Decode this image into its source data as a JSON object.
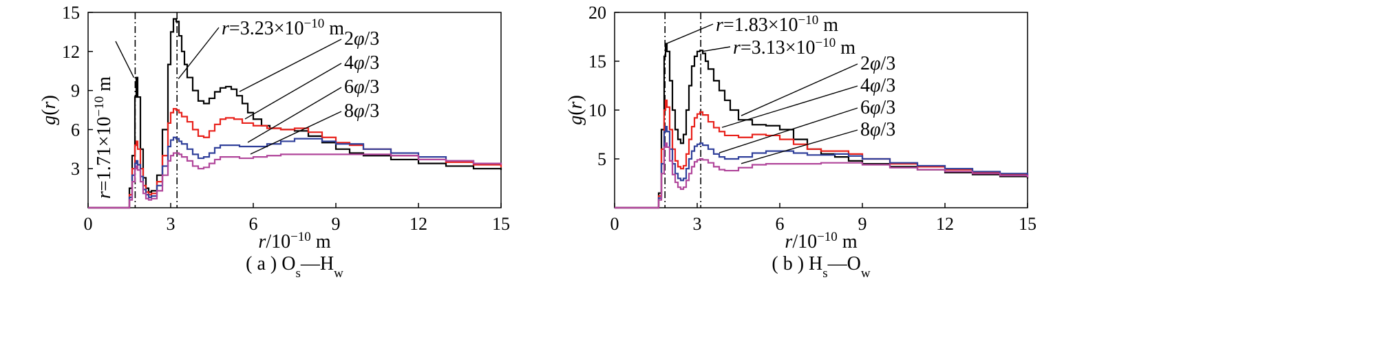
{
  "chart_data": [
    {
      "type": "line",
      "caption": "( a ) O",
      "caption_sub1": "s",
      "caption_dash": "—H",
      "caption_sub2": "w",
      "xlabel": "r/10",
      "xlabel_exp": "−10",
      "xlabel_unit": " m",
      "ylabel": "g(r)",
      "xlim": [
        0,
        15
      ],
      "ylim": [
        0,
        15
      ],
      "xticks": [
        "0",
        "3",
        "6",
        "9",
        "12",
        "15"
      ],
      "yticks": [
        "3",
        "6",
        "9",
        "12",
        "15"
      ],
      "vlines": [
        1.71,
        3.23
      ],
      "annotations": [
        {
          "text": "r=1.71×10",
          "exp": "−10",
          "unit": " m",
          "x": 1.71,
          "y": 10.0
        },
        {
          "text": "r=3.23×10",
          "exp": "−10",
          "unit": " m",
          "x": 3.23,
          "y": 9.9
        }
      ],
      "series": [
        {
          "name": "2φ/3",
          "color": "#000000",
          "label_at": 5.5,
          "x": [
            0,
            1.4,
            1.5,
            1.6,
            1.7,
            1.75,
            1.8,
            1.9,
            2.0,
            2.1,
            2.2,
            2.3,
            2.5,
            2.7,
            2.9,
            3.0,
            3.1,
            3.2,
            3.3,
            3.4,
            3.5,
            3.6,
            3.8,
            4.0,
            4.2,
            4.4,
            4.6,
            4.8,
            5.0,
            5.2,
            5.4,
            5.6,
            5.8,
            6.0,
            6.3,
            6.6,
            7.0,
            7.5,
            8.0,
            8.5,
            9.0,
            9.5,
            10.0,
            11.0,
            12.0,
            13.0,
            14.0,
            15.0
          ],
          "y": [
            0,
            0,
            1.5,
            4.0,
            8.5,
            10.0,
            8.5,
            4.5,
            2.3,
            1.5,
            1.2,
            1.3,
            2.5,
            6.0,
            11.0,
            13.5,
            14.5,
            14.3,
            13.2,
            12.0,
            11.0,
            10.0,
            9.0,
            8.2,
            8.0,
            8.4,
            8.9,
            9.2,
            9.3,
            9.1,
            8.6,
            8.0,
            7.3,
            6.8,
            6.3,
            6.1,
            6.0,
            5.9,
            5.5,
            5.0,
            4.5,
            4.2,
            4.0,
            3.7,
            3.4,
            3.2,
            3.0,
            2.9
          ]
        },
        {
          "name": "4φ/3",
          "color": "#e8201a",
          "label_at": 5.7,
          "x": [
            0,
            1.4,
            1.5,
            1.6,
            1.7,
            1.75,
            1.8,
            1.9,
            2.0,
            2.1,
            2.2,
            2.3,
            2.5,
            2.7,
            2.9,
            3.0,
            3.1,
            3.2,
            3.3,
            3.4,
            3.6,
            3.8,
            4.0,
            4.2,
            4.4,
            4.6,
            4.8,
            5.0,
            5.3,
            5.6,
            6.0,
            6.5,
            7.0,
            7.5,
            8.0,
            8.5,
            9.0,
            9.5,
            10.0,
            11.0,
            12.0,
            13.0,
            14.0,
            15.0
          ],
          "y": [
            0,
            0,
            1.0,
            3.0,
            4.8,
            5.1,
            4.5,
            3.0,
            1.7,
            1.2,
            1.0,
            1.1,
            2.0,
            4.0,
            6.5,
            7.3,
            7.6,
            7.5,
            7.3,
            7.0,
            6.6,
            6.0,
            5.5,
            5.4,
            5.9,
            6.4,
            6.8,
            6.9,
            6.8,
            6.5,
            6.3,
            6.1,
            6.0,
            6.1,
            5.8,
            5.4,
            5.0,
            4.8,
            4.5,
            4.0,
            3.7,
            3.5,
            3.3,
            3.1
          ]
        },
        {
          "name": "6φ/3",
          "color": "#2f3f9a",
          "label_at": 5.8,
          "x": [
            0,
            1.4,
            1.5,
            1.6,
            1.7,
            1.75,
            1.8,
            1.9,
            2.0,
            2.1,
            2.2,
            2.3,
            2.5,
            2.7,
            2.9,
            3.0,
            3.1,
            3.2,
            3.3,
            3.4,
            3.6,
            3.8,
            4.0,
            4.2,
            4.4,
            4.6,
            4.8,
            5.0,
            5.5,
            6.0,
            6.5,
            7.0,
            7.5,
            8.0,
            8.5,
            9.0,
            10.0,
            11.0,
            12.0,
            13.0,
            14.0,
            15.0
          ],
          "y": [
            0,
            0,
            0.8,
            2.5,
            3.4,
            3.6,
            3.3,
            2.4,
            1.4,
            1.0,
            0.8,
            0.9,
            1.7,
            3.2,
            4.7,
            5.2,
            5.4,
            5.3,
            5.1,
            4.9,
            4.5,
            4.1,
            3.8,
            3.9,
            4.2,
            4.6,
            4.8,
            4.8,
            4.7,
            4.7,
            4.9,
            5.1,
            5.3,
            5.3,
            5.1,
            4.9,
            4.5,
            4.2,
            3.9,
            3.6,
            3.4,
            3.3
          ]
        },
        {
          "name": "8φ/3",
          "color": "#b0459a",
          "label_at": 5.9,
          "x": [
            0,
            1.4,
            1.5,
            1.6,
            1.7,
            1.75,
            1.8,
            1.9,
            2.0,
            2.1,
            2.2,
            2.3,
            2.5,
            2.7,
            2.9,
            3.0,
            3.1,
            3.2,
            3.3,
            3.4,
            3.6,
            3.8,
            4.0,
            4.2,
            4.4,
            4.6,
            4.8,
            5.0,
            5.5,
            6.0,
            6.5,
            7.0,
            7.5,
            8.0,
            9.0,
            10.0,
            11.0,
            12.0,
            13.0,
            14.0,
            15.0
          ],
          "y": [
            0,
            0,
            0.6,
            2.0,
            3.0,
            3.2,
            2.9,
            2.0,
            1.1,
            0.7,
            0.6,
            0.7,
            1.3,
            2.5,
            3.6,
            4.0,
            4.2,
            4.2,
            4.1,
            3.9,
            3.6,
            3.2,
            3.0,
            3.1,
            3.4,
            3.7,
            3.9,
            3.9,
            3.8,
            3.9,
            4.0,
            4.1,
            4.1,
            4.1,
            4.1,
            4.1,
            4.0,
            3.7,
            3.6,
            3.4,
            3.3
          ]
        }
      ]
    },
    {
      "type": "line",
      "caption": "( b ) H",
      "caption_sub1": "s",
      "caption_dash": "—O",
      "caption_sub2": "w",
      "xlabel": "r/10",
      "xlabel_exp": "−10",
      "xlabel_unit": " m",
      "ylabel": "g(r)",
      "xlim": [
        0,
        15
      ],
      "ylim": [
        0,
        20
      ],
      "xticks": [
        "0",
        "3",
        "6",
        "9",
        "12",
        "15"
      ],
      "yticks": [
        "5",
        "10",
        "15",
        "20"
      ],
      "vlines": [
        1.83,
        3.13
      ],
      "annotations": [
        {
          "text": "r=1.83×10",
          "exp": "−10",
          "unit": " m",
          "x": 1.83,
          "y": 16.8
        },
        {
          "text": "r=3.13×10",
          "exp": "−10",
          "unit": " m",
          "x": 3.13,
          "y": 16.0
        }
      ],
      "series": [
        {
          "name": "2φ/3",
          "color": "#000000",
          "label_at": 4.6,
          "x": [
            0,
            1.5,
            1.6,
            1.7,
            1.8,
            1.85,
            1.9,
            2.0,
            2.1,
            2.2,
            2.3,
            2.4,
            2.5,
            2.6,
            2.7,
            2.8,
            2.9,
            3.0,
            3.1,
            3.2,
            3.3,
            3.4,
            3.6,
            3.8,
            4.0,
            4.2,
            4.5,
            5.0,
            5.5,
            6.0,
            6.5,
            7.0,
            7.5,
            8.0,
            8.5,
            9.0,
            10.0,
            11.0,
            12.0,
            13.0,
            14.0,
            15.0
          ],
          "y": [
            0,
            0,
            1.5,
            8.0,
            15.5,
            16.8,
            16.0,
            13.0,
            10.0,
            8.0,
            7.0,
            6.6,
            7.5,
            10.0,
            12.5,
            14.5,
            15.5,
            16.0,
            16.1,
            15.8,
            15.0,
            14.2,
            13.0,
            12.0,
            11.0,
            10.0,
            9.0,
            8.5,
            8.4,
            8.0,
            7.0,
            6.0,
            5.5,
            5.2,
            4.8,
            4.5,
            4.2,
            3.9,
            3.6,
            3.4,
            3.2,
            3.0
          ]
        },
        {
          "name": "4φ/3",
          "color": "#e8201a",
          "label_at": 3.9,
          "x": [
            0,
            1.5,
            1.6,
            1.7,
            1.8,
            1.85,
            1.9,
            2.0,
            2.1,
            2.2,
            2.3,
            2.4,
            2.5,
            2.6,
            2.7,
            2.8,
            2.9,
            3.0,
            3.1,
            3.2,
            3.4,
            3.6,
            3.8,
            4.0,
            4.5,
            5.0,
            5.5,
            6.0,
            6.5,
            7.0,
            7.5,
            8.0,
            8.5,
            9.0,
            10.0,
            11.0,
            12.0,
            13.0,
            14.0,
            15.0
          ],
          "y": [
            0,
            0,
            1.2,
            6.0,
            10.0,
            11.0,
            10.3,
            8.0,
            6.0,
            4.8,
            4.2,
            4.0,
            4.3,
            5.5,
            7.0,
            8.3,
            9.2,
            9.6,
            9.8,
            9.5,
            8.8,
            8.2,
            7.8,
            7.4,
            7.2,
            7.5,
            7.4,
            7.0,
            6.5,
            6.0,
            5.8,
            5.8,
            5.5,
            5.0,
            4.5,
            4.2,
            3.9,
            3.6,
            3.4,
            3.2
          ]
        },
        {
          "name": "6φ/3",
          "color": "#2f3f9a",
          "label_at": 3.8,
          "x": [
            0,
            1.5,
            1.6,
            1.7,
            1.8,
            1.85,
            1.9,
            2.0,
            2.1,
            2.2,
            2.3,
            2.4,
            2.5,
            2.6,
            2.7,
            2.8,
            2.9,
            3.0,
            3.1,
            3.2,
            3.4,
            3.6,
            3.8,
            4.0,
            4.5,
            5.0,
            5.5,
            6.0,
            6.5,
            7.0,
            7.5,
            8.0,
            8.5,
            9.0,
            10.0,
            11.0,
            12.0,
            13.0,
            14.0,
            15.0
          ],
          "y": [
            0,
            0,
            1.0,
            4.5,
            7.8,
            8.3,
            7.8,
            6.0,
            4.5,
            3.5,
            3.0,
            2.8,
            3.0,
            4.0,
            5.0,
            5.8,
            6.3,
            6.5,
            6.6,
            6.4,
            6.0,
            5.5,
            5.2,
            5.0,
            5.2,
            5.6,
            5.8,
            5.8,
            5.6,
            5.4,
            5.4,
            5.5,
            5.3,
            5.0,
            4.6,
            4.3,
            4.0,
            3.7,
            3.5,
            3.3
          ]
        },
        {
          "name": "8φ/3",
          "color": "#b0459a",
          "label_at": 4.6,
          "x": [
            0,
            1.5,
            1.6,
            1.7,
            1.8,
            1.85,
            1.9,
            2.0,
            2.1,
            2.2,
            2.3,
            2.4,
            2.5,
            2.6,
            2.7,
            2.8,
            2.9,
            3.0,
            3.1,
            3.2,
            3.4,
            3.6,
            3.8,
            4.0,
            4.5,
            5.0,
            5.5,
            6.0,
            6.5,
            7.0,
            7.5,
            8.0,
            9.0,
            10.0,
            11.0,
            12.0,
            13.0,
            14.0,
            15.0
          ],
          "y": [
            0,
            0,
            0.8,
            3.5,
            6.2,
            6.6,
            6.2,
            4.8,
            3.4,
            2.6,
            2.1,
            1.9,
            2.1,
            2.8,
            3.5,
            4.2,
            4.7,
            4.9,
            5.0,
            4.9,
            4.6,
            4.2,
            3.9,
            3.8,
            4.1,
            4.4,
            4.5,
            4.5,
            4.5,
            4.5,
            4.6,
            4.6,
            4.4,
            4.1,
            3.9,
            3.7,
            3.5,
            3.3,
            3.1
          ]
        }
      ]
    }
  ]
}
